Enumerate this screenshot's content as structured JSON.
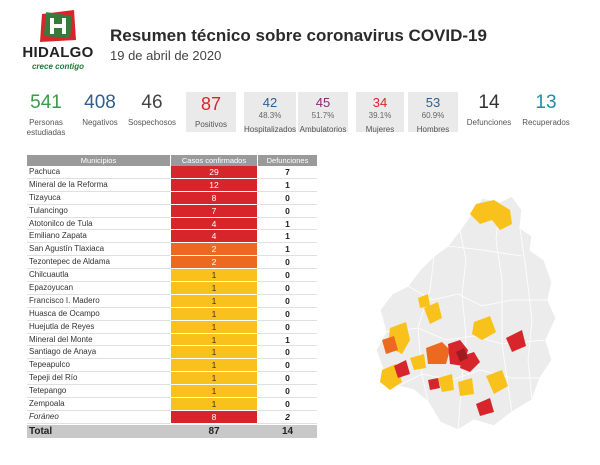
{
  "header": {
    "logo_name": "HIDALGO",
    "logo_tagline": "crece contigo",
    "title": "Resumen técnico sobre coronavirus COVID-19",
    "date": "19 de abril de 2020"
  },
  "colors": {
    "green": "#3c9a4a",
    "blue": "#2f5f8f",
    "red": "#d7262b",
    "purple": "#8a2a6e",
    "orange": "#ec6a1f",
    "yellow": "#f9c11b",
    "teal": "#1f8fa8"
  },
  "stats": [
    {
      "value": "541",
      "label": "Personas estudiadas",
      "color": "#3c9a4a"
    },
    {
      "value": "408",
      "label": "Negativos",
      "color": "#2f5f8f"
    },
    {
      "value": "46",
      "label": "Sospechosos",
      "color": "#444444"
    },
    {
      "value": "87",
      "label": "Positivos",
      "color": "#d7262b"
    },
    {
      "value": "42",
      "pct": "48.3%",
      "label": "Hospitalizados",
      "color": "#2f5f8f"
    },
    {
      "value": "45",
      "pct": "51.7%",
      "label": "Ambulatorios",
      "color": "#8a2a6e"
    },
    {
      "value": "34",
      "pct": "39.1%",
      "label": "Mujeres",
      "color": "#d7262b"
    },
    {
      "value": "53",
      "pct": "60.9%",
      "label": "Hombres",
      "color": "#2f5f8f"
    },
    {
      "value": "14",
      "label": "Defunciones",
      "color": "#333333"
    },
    {
      "value": "13",
      "label": "Recuperados",
      "color": "#1f8fa8"
    }
  ],
  "table": {
    "headers": [
      "Municipios",
      "Casos confirmados",
      "Defunciones"
    ],
    "rows": [
      {
        "municipio": "Pachuca",
        "casos": "29",
        "defunciones": "7",
        "color": "#d7262b"
      },
      {
        "municipio": "Mineral de la Reforma",
        "casos": "12",
        "defunciones": "1",
        "color": "#d7262b"
      },
      {
        "municipio": "Tizayuca",
        "casos": "8",
        "defunciones": "0",
        "color": "#d7262b"
      },
      {
        "municipio": "Tulancingo",
        "casos": "7",
        "defunciones": "0",
        "color": "#d7262b"
      },
      {
        "municipio": "Atotonilco de Tula",
        "casos": "4",
        "defunciones": "1",
        "color": "#d7262b"
      },
      {
        "municipio": "Emiliano Zapata",
        "casos": "4",
        "defunciones": "1",
        "color": "#d7262b"
      },
      {
        "municipio": "San Agustín Tlaxiaca",
        "casos": "2",
        "defunciones": "1",
        "color": "#ec6a1f"
      },
      {
        "municipio": "Tezontepec de Aldama",
        "casos": "2",
        "defunciones": "0",
        "color": "#ec6a1f"
      },
      {
        "municipio": "Chilcuautla",
        "casos": "1",
        "defunciones": "0",
        "color": "#f9c11b"
      },
      {
        "municipio": "Epazoyucan",
        "casos": "1",
        "defunciones": "0",
        "color": "#f9c11b"
      },
      {
        "municipio": "Francisco I. Madero",
        "casos": "1",
        "defunciones": "0",
        "color": "#f9c11b"
      },
      {
        "municipio": "Huasca de Ocampo",
        "casos": "1",
        "defunciones": "0",
        "color": "#f9c11b"
      },
      {
        "municipio": "Huejutla de Reyes",
        "casos": "1",
        "defunciones": "0",
        "color": "#f9c11b"
      },
      {
        "municipio": "Mineral del Monte",
        "casos": "1",
        "defunciones": "1",
        "color": "#f9c11b"
      },
      {
        "municipio": "Santiago de Anaya",
        "casos": "1",
        "defunciones": "0",
        "color": "#f9c11b"
      },
      {
        "municipio": "Tepeapulco",
        "casos": "1",
        "defunciones": "0",
        "color": "#f9c11b"
      },
      {
        "municipio": "Tepeji del Río",
        "casos": "1",
        "defunciones": "0",
        "color": "#f9c11b"
      },
      {
        "municipio": "Tetepango",
        "casos": "1",
        "defunciones": "0",
        "color": "#f9c11b"
      },
      {
        "municipio": "Zempoala",
        "casos": "1",
        "defunciones": "0",
        "color": "#f9c11b"
      },
      {
        "municipio": "Foráneo",
        "casos": "8",
        "defunciones": "2",
        "color": "#d7262b"
      }
    ],
    "total_label": "Total",
    "total_casos": "87",
    "total_defunciones": "14"
  }
}
